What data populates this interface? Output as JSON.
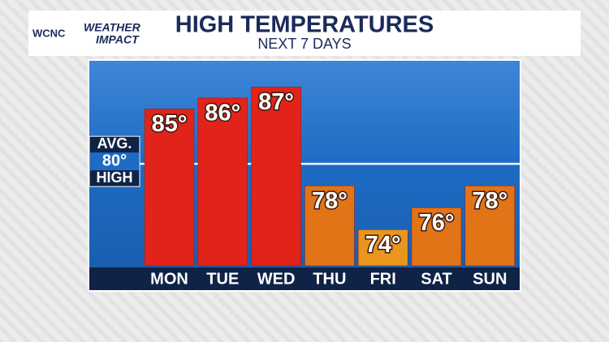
{
  "header": {
    "logo_station": "WCNC",
    "logo_line1": "WEATHER",
    "logo_line2": "IMPACT"
  },
  "chart_data": {
    "type": "bar",
    "title": "HIGH TEMPERATURES",
    "subtitle": "NEXT 7 DAYS",
    "categories": [
      "MON",
      "TUE",
      "WED",
      "THU",
      "FRI",
      "SAT",
      "SUN"
    ],
    "values": [
      85,
      86,
      87,
      78,
      74,
      76,
      78
    ],
    "value_labels": [
      "85°",
      "86°",
      "87°",
      "78°",
      "74°",
      "76°",
      "78°"
    ],
    "colors": [
      "#e2231a",
      "#e2231a",
      "#e2231a",
      "#e27418",
      "#e8961e",
      "#e27418",
      "#e27418"
    ],
    "ylim": [
      70.7,
      89.4
    ],
    "average": {
      "top_label": "AVG.",
      "value": 80,
      "value_label": "80°",
      "bottom_label": "HIGH"
    }
  }
}
